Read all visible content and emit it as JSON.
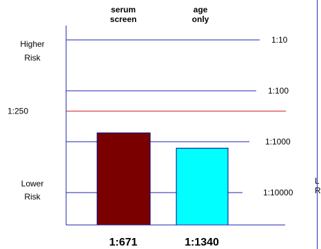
{
  "chart_data": {
    "type": "bar",
    "scale": "log",
    "categories": [
      [
        "serum",
        "screen"
      ],
      [
        "age",
        "only"
      ]
    ],
    "series": [
      {
        "values": [
          671,
          1340
        ],
        "colors": [
          "#7a0000",
          "#00ffff"
        ]
      }
    ],
    "value_labels": [
      "1:671",
      "1:1340"
    ],
    "risk_lines": [
      {
        "odds": 10,
        "label": "1:10",
        "color": "#1f1fb0"
      },
      {
        "odds": 100,
        "label": "1:100",
        "color": "#1f1fb0"
      },
      {
        "odds": 1000,
        "label": "1:1000",
        "color": "#1f1fb0"
      },
      {
        "odds": 10000,
        "label": "1:10000",
        "color": "#1f1fb0"
      }
    ],
    "cutoff_line": {
      "odds": 250,
      "label": "1:250",
      "color": "#cc2222"
    },
    "left_labels": [
      {
        "text": [
          "Higher",
          "Risk"
        ]
      },
      {
        "text": [
          "Lower",
          "Risk"
        ]
      }
    ],
    "clipped_labels": [
      "L",
      "R"
    ],
    "axis_color": "#1f1fb0",
    "bar_border": "#000080"
  }
}
